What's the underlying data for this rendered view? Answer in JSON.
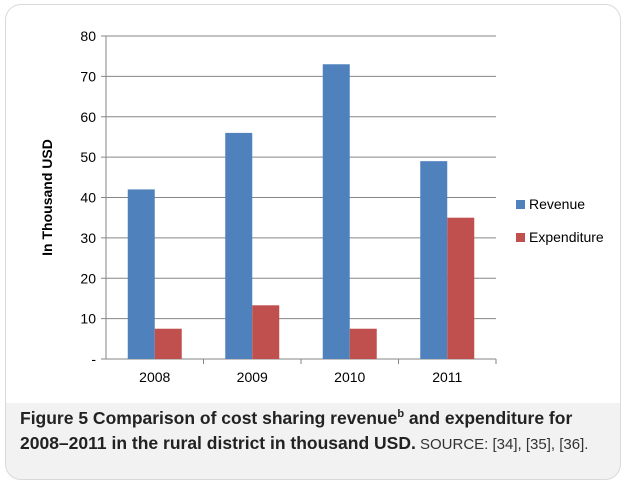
{
  "chart_data": {
    "type": "bar",
    "categories": [
      "2008",
      "2009",
      "2010",
      "2011"
    ],
    "series": [
      {
        "name": "Revenue",
        "color": "#4f81bd",
        "values": [
          42,
          56,
          73,
          49
        ]
      },
      {
        "name": "Expenditure",
        "color": "#c0504d",
        "values": [
          7.5,
          13.3,
          7.5,
          35
        ]
      }
    ],
    "ylim": [
      0,
      80
    ],
    "y_ticks": [
      "-",
      "10",
      "20",
      "30",
      "40",
      "50",
      "60",
      "70",
      "80"
    ],
    "ylabel": "In Thousand USD",
    "grid": true,
    "legend": "right"
  },
  "caption": {
    "part1": "Figure 5 Comparison of cost sharing revenue",
    "sup": "b",
    "part2": " and expenditure for 2008–2011 in the rural district in thousand USD.",
    "source": " SOURCE: [34], [35], [36]."
  }
}
